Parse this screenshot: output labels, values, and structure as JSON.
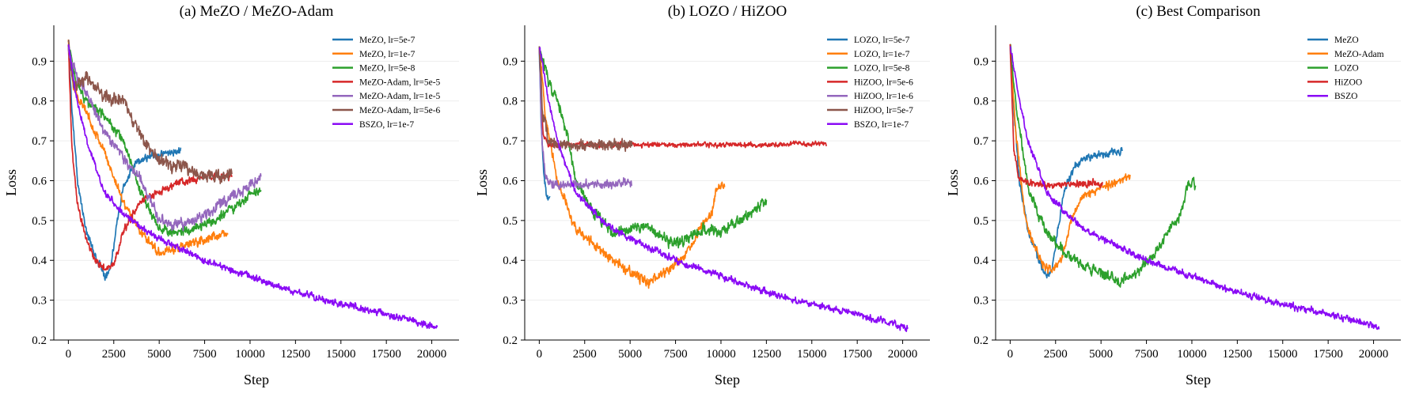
{
  "chart_data": [
    {
      "type": "line",
      "title": "(a) MeZO / MeZO-Adam",
      "xlabel": "Step",
      "ylabel": "Loss",
      "xlim": [
        -800,
        21500
      ],
      "ylim": [
        0.2,
        0.99
      ],
      "xticks": [
        0,
        2500,
        5000,
        7500,
        10000,
        12500,
        15000,
        17500,
        20000
      ],
      "yticks": [
        0.2,
        0.3,
        0.4,
        0.5,
        0.6,
        0.7,
        0.8,
        0.9
      ],
      "ytick_labels": [
        "0.2",
        "0.3",
        "0.4",
        "0.5",
        "0.6",
        "0.7",
        "0.8",
        "0.9"
      ],
      "grid": "horizontal",
      "legend_position": "top-right",
      "series": [
        {
          "name": "MeZO, lr=5e-7",
          "color": "#1f77b4",
          "noise": 0.008,
          "x": [
            0,
            200,
            500,
            1000,
            1500,
            2000,
            2300,
            2600,
            3000,
            3500,
            4000,
            5000,
            6000,
            6200
          ],
          "y": [
            0.94,
            0.78,
            0.6,
            0.47,
            0.41,
            0.36,
            0.38,
            0.47,
            0.58,
            0.63,
            0.655,
            0.665,
            0.675,
            0.68
          ]
        },
        {
          "name": "MeZO, lr=1e-7",
          "color": "#ff7f0e",
          "noise": 0.009,
          "x": [
            0,
            300,
            1000,
            2000,
            3000,
            4000,
            5000,
            6000,
            7000,
            8000,
            8800
          ],
          "y": [
            0.95,
            0.83,
            0.77,
            0.67,
            0.55,
            0.47,
            0.42,
            0.43,
            0.445,
            0.46,
            0.47
          ]
        },
        {
          "name": "MeZO, lr=5e-8",
          "color": "#2ca02c",
          "noise": 0.01,
          "x": [
            0,
            500,
            1000,
            2000,
            3000,
            4000,
            5000,
            6000,
            7000,
            8000,
            9000,
            10000,
            10600
          ],
          "y": [
            0.94,
            0.84,
            0.8,
            0.76,
            0.7,
            0.57,
            0.48,
            0.47,
            0.48,
            0.5,
            0.53,
            0.565,
            0.575
          ]
        },
        {
          "name": "MeZO-Adam, lr=5e-5",
          "color": "#d62728",
          "noise": 0.008,
          "x": [
            0,
            200,
            500,
            1000,
            1500,
            2000,
            2500,
            3000,
            4000,
            5000,
            6000,
            7000,
            8000,
            9000
          ],
          "y": [
            0.94,
            0.68,
            0.54,
            0.45,
            0.4,
            0.38,
            0.39,
            0.47,
            0.55,
            0.57,
            0.595,
            0.605,
            0.61,
            0.61
          ]
        },
        {
          "name": "MeZO-Adam, lr=1e-5",
          "color": "#9467bd",
          "noise": 0.011,
          "x": [
            0,
            500,
            1000,
            1500,
            2000,
            3000,
            4000,
            5000,
            6000,
            7000,
            8000,
            9000,
            10000,
            10600
          ],
          "y": [
            0.93,
            0.86,
            0.82,
            0.77,
            0.72,
            0.66,
            0.6,
            0.5,
            0.49,
            0.5,
            0.53,
            0.56,
            0.59,
            0.605
          ]
        },
        {
          "name": "MeZO-Adam, lr=5e-6",
          "color": "#8c564b",
          "noise": 0.014,
          "x": [
            0,
            300,
            1000,
            2000,
            3000,
            4000,
            5000,
            6000,
            7000,
            8000,
            9000
          ],
          "y": [
            0.95,
            0.84,
            0.86,
            0.81,
            0.8,
            0.71,
            0.65,
            0.64,
            0.62,
            0.61,
            0.615
          ]
        },
        {
          "name": "BSZO, lr=1e-7",
          "color": "#8a0bf5",
          "noise": 0.007,
          "x": [
            0,
            500,
            1000,
            2000,
            3000,
            4000,
            5000,
            7500,
            10000,
            12500,
            15000,
            17500,
            20000,
            20300
          ],
          "y": [
            0.94,
            0.8,
            0.7,
            0.57,
            0.52,
            0.48,
            0.455,
            0.4,
            0.36,
            0.32,
            0.29,
            0.265,
            0.235,
            0.23
          ]
        }
      ]
    },
    {
      "type": "line",
      "title": "(b) LOZO / HiZOO",
      "xlabel": "Step",
      "ylabel": "Loss",
      "xlim": [
        -800,
        21500
      ],
      "ylim": [
        0.2,
        0.99
      ],
      "xticks": [
        0,
        2500,
        5000,
        7500,
        10000,
        12500,
        15000,
        17500,
        20000
      ],
      "yticks": [
        0.2,
        0.3,
        0.4,
        0.5,
        0.6,
        0.7,
        0.8,
        0.9
      ],
      "ytick_labels": [
        "0.2",
        "0.3",
        "0.4",
        "0.5",
        "0.6",
        "0.7",
        "0.8",
        "0.9"
      ],
      "grid": "horizontal",
      "legend_position": "top-right",
      "series": [
        {
          "name": "LOZO, lr=5e-7",
          "color": "#1f77b4",
          "noise": 0.01,
          "x": [
            0,
            100,
            250,
            400,
            500,
            600
          ],
          "y": [
            0.94,
            0.75,
            0.62,
            0.57,
            0.55,
            0.56
          ]
        },
        {
          "name": "LOZO, lr=1e-7",
          "color": "#ff7f0e",
          "noise": 0.01,
          "x": [
            0,
            300,
            1000,
            2000,
            3000,
            4000,
            5000,
            6000,
            7000,
            8000,
            9000,
            9500,
            9800,
            10200
          ],
          "y": [
            0.94,
            0.78,
            0.6,
            0.48,
            0.44,
            0.4,
            0.37,
            0.345,
            0.37,
            0.41,
            0.49,
            0.52,
            0.59,
            0.59
          ]
        },
        {
          "name": "LOZO, lr=5e-8",
          "color": "#2ca02c",
          "noise": 0.012,
          "x": [
            0,
            500,
            1000,
            1500,
            2000,
            3000,
            4000,
            5000,
            6000,
            7000,
            8000,
            9000,
            10000,
            11000,
            12000,
            12500
          ],
          "y": [
            0.94,
            0.85,
            0.8,
            0.72,
            0.6,
            0.52,
            0.47,
            0.48,
            0.48,
            0.45,
            0.45,
            0.48,
            0.47,
            0.5,
            0.53,
            0.55
          ]
        },
        {
          "name": "HiZOO, lr=5e-6",
          "color": "#d62728",
          "noise": 0.005,
          "x": [
            0,
            200,
            500,
            1000,
            3000,
            5000,
            7500,
            10000,
            12500,
            15000,
            15800
          ],
          "y": [
            0.94,
            0.72,
            0.69,
            0.69,
            0.69,
            0.69,
            0.69,
            0.69,
            0.69,
            0.692,
            0.692
          ]
        },
        {
          "name": "HiZOO, lr=1e-6",
          "color": "#9467bd",
          "noise": 0.009,
          "x": [
            0,
            150,
            300,
            500,
            1000,
            2000,
            3000,
            4000,
            5000,
            5100
          ],
          "y": [
            0.94,
            0.7,
            0.62,
            0.6,
            0.59,
            0.59,
            0.59,
            0.592,
            0.595,
            0.595
          ]
        },
        {
          "name": "HiZOO, lr=5e-7",
          "color": "#8c564b",
          "noise": 0.012,
          "x": [
            0,
            200,
            500,
            1000,
            2000,
            3000,
            4000,
            5000,
            5100
          ],
          "y": [
            0.94,
            0.76,
            0.7,
            0.69,
            0.69,
            0.69,
            0.69,
            0.69,
            0.69
          ]
        },
        {
          "name": "BSZO, lr=1e-7",
          "color": "#8a0bf5",
          "noise": 0.007,
          "x": [
            0,
            500,
            1000,
            2000,
            3000,
            4000,
            5000,
            7500,
            10000,
            12500,
            15000,
            17500,
            20000,
            20300
          ],
          "y": [
            0.94,
            0.8,
            0.7,
            0.57,
            0.52,
            0.48,
            0.455,
            0.4,
            0.36,
            0.32,
            0.29,
            0.265,
            0.235,
            0.23
          ]
        }
      ]
    },
    {
      "type": "line",
      "title": "(c) Best Comparison",
      "xlabel": "Step",
      "ylabel": "Loss",
      "xlim": [
        -800,
        21500
      ],
      "ylim": [
        0.2,
        0.99
      ],
      "xticks": [
        0,
        2500,
        5000,
        7500,
        10000,
        12500,
        15000,
        17500,
        20000
      ],
      "yticks": [
        0.2,
        0.3,
        0.4,
        0.5,
        0.6,
        0.7,
        0.8,
        0.9
      ],
      "ytick_labels": [
        "0.2",
        "0.3",
        "0.4",
        "0.5",
        "0.6",
        "0.7",
        "0.8",
        "0.9"
      ],
      "grid": "horizontal",
      "legend_position": "top-right",
      "series": [
        {
          "name": "MeZO",
          "color": "#1f77b4",
          "noise": 0.008,
          "x": [
            0,
            200,
            500,
            1000,
            1500,
            2000,
            2300,
            2600,
            3000,
            3500,
            4000,
            5000,
            6000,
            6200
          ],
          "y": [
            0.94,
            0.78,
            0.6,
            0.47,
            0.41,
            0.36,
            0.38,
            0.47,
            0.58,
            0.63,
            0.655,
            0.665,
            0.675,
            0.68
          ]
        },
        {
          "name": "MeZO-Adam",
          "color": "#ff7f0e",
          "noise": 0.009,
          "x": [
            0,
            300,
            800,
            1200,
            1800,
            2300,
            2800,
            3500,
            4000,
            5000,
            6000,
            6600
          ],
          "y": [
            0.94,
            0.72,
            0.52,
            0.45,
            0.39,
            0.37,
            0.4,
            0.52,
            0.56,
            0.58,
            0.6,
            0.61
          ]
        },
        {
          "name": "LOZO",
          "color": "#2ca02c",
          "noise": 0.011,
          "x": [
            0,
            300,
            1000,
            2000,
            3000,
            4000,
            5000,
            6000,
            7000,
            8000,
            9000,
            9500,
            9800,
            10200
          ],
          "y": [
            0.94,
            0.8,
            0.58,
            0.47,
            0.42,
            0.39,
            0.37,
            0.35,
            0.37,
            0.42,
            0.49,
            0.53,
            0.6,
            0.59
          ]
        },
        {
          "name": "HiZOO",
          "color": "#d62728",
          "noise": 0.008,
          "x": [
            0,
            200,
            500,
            1000,
            2000,
            3000,
            4000,
            5000,
            5100
          ],
          "y": [
            0.94,
            0.68,
            0.6,
            0.595,
            0.59,
            0.59,
            0.592,
            0.594,
            0.594
          ]
        },
        {
          "name": "BSZO",
          "color": "#8a0bf5",
          "noise": 0.007,
          "x": [
            0,
            500,
            1000,
            2000,
            3000,
            4000,
            5000,
            7500,
            10000,
            12500,
            15000,
            17500,
            20000,
            20300
          ],
          "y": [
            0.94,
            0.8,
            0.7,
            0.57,
            0.52,
            0.48,
            0.455,
            0.4,
            0.36,
            0.32,
            0.29,
            0.265,
            0.235,
            0.23
          ]
        }
      ]
    }
  ]
}
